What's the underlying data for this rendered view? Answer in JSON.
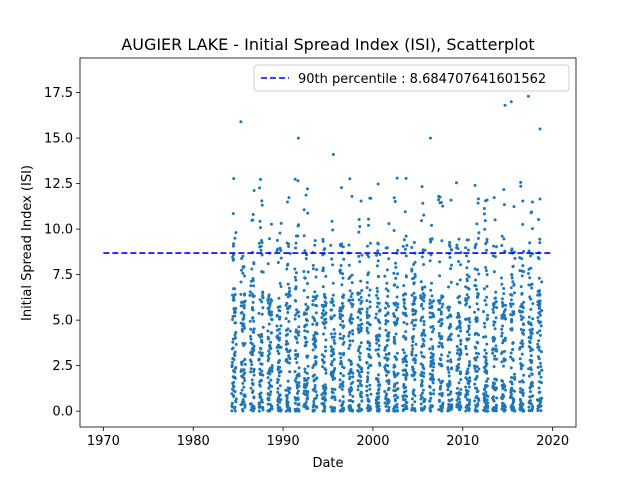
{
  "chart_data": {
    "type": "scatter",
    "title": "AUGIER LAKE - Initial Spread Index (ISI), Scatterplot",
    "xlabel": "Date",
    "ylabel": "Initial Spread Index (ISI)",
    "xlim": [
      1967.4,
      2022.6
    ],
    "ylim": [
      -0.87,
      19.4
    ],
    "x_ticks": [
      1970,
      1980,
      1990,
      2000,
      2010,
      2020
    ],
    "y_ticks": [
      0.0,
      2.5,
      5.0,
      7.5,
      10.0,
      12.5,
      15.0,
      17.5
    ],
    "x_tick_labels": [
      "1970",
      "1980",
      "1990",
      "2000",
      "2010",
      "2020"
    ],
    "y_tick_labels": [
      "0.0",
      "2.5",
      "5.0",
      "7.5",
      "10.0",
      "12.5",
      "15.0",
      "17.5"
    ],
    "series": [
      {
        "name": "",
        "color": "#1f77b4",
        "seasons": [
          1984,
          1985,
          1986,
          1987,
          1988,
          1989,
          1990,
          1991,
          1992,
          1993,
          1994,
          1995,
          1996,
          1997,
          1998,
          1999,
          2000,
          2001,
          2002,
          2003,
          2004,
          2005,
          2006,
          2007,
          2008,
          2009,
          2010,
          2011,
          2012,
          2013,
          2014,
          2015,
          2016,
          2017,
          2018
        ],
        "notable_points": [
          {
            "x": 1985.3,
            "y": 15.9
          },
          {
            "x": 1991.7,
            "y": 15.0
          },
          {
            "x": 1995.6,
            "y": 14.1
          },
          {
            "x": 2006.4,
            "y": 15.0
          },
          {
            "x": 2014.7,
            "y": 16.8
          },
          {
            "x": 2015.4,
            "y": 17.0
          },
          {
            "x": 2017.3,
            "y": 17.3
          },
          {
            "x": 2018.6,
            "y": 15.5
          }
        ]
      }
    ],
    "reference_line": {
      "name": "90th percentile : 8.684707641601562",
      "y": 8.684707641601562,
      "x_range": [
        1970,
        2020
      ],
      "color": "#0000ff",
      "style": "dashed"
    },
    "legend": {
      "placement": "top-right",
      "entries": [
        "90th percentile : 8.684707641601562"
      ]
    },
    "grid": false
  }
}
